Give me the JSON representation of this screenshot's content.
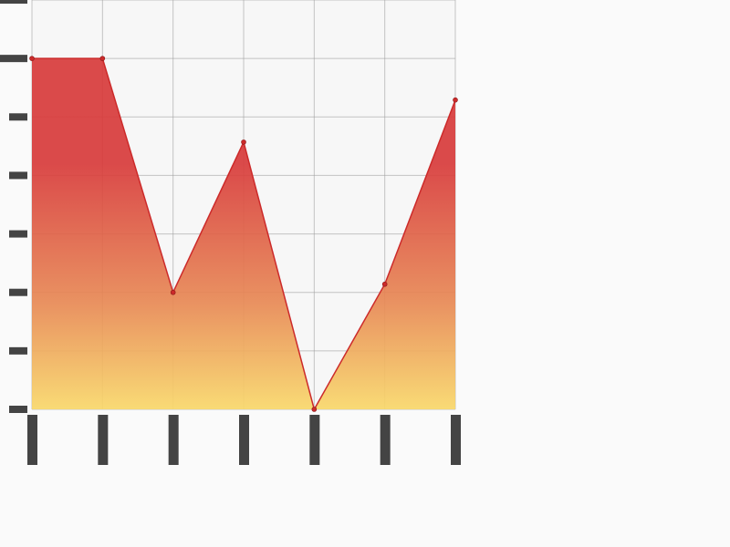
{
  "chart_data": {
    "type": "area",
    "title": "",
    "xlabel": "",
    "ylabel": "",
    "x": [
      0,
      1,
      2,
      3,
      4,
      5,
      6
    ],
    "values": [
      6,
      6,
      2,
      4.57,
      0,
      2.14,
      5.29
    ],
    "ylim": [
      0,
      7
    ],
    "grid": true,
    "legend": "none"
  },
  "colors": {
    "background": "#fafafa",
    "plot_background": "#f7f7f7",
    "grid": "#999999",
    "line": "#cc2a2a",
    "fill_top": "#d83b3b",
    "fill_mid": "#e88a55",
    "fill_bottom": "#f9d86a",
    "ticks": "#444444"
  }
}
